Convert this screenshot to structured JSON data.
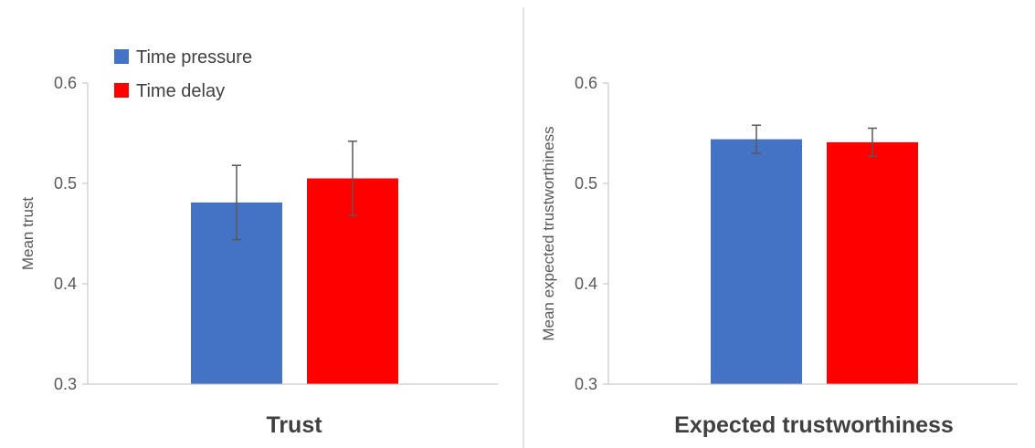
{
  "colors": {
    "series_1": "#4472C4",
    "series_2": "#FF0000",
    "axis": "#BFBFBF",
    "divider": "#D9D9D9",
    "error_bar": "#595959"
  },
  "legend": {
    "placement": "top-left",
    "items": [
      "Time pressure",
      "Time delay"
    ]
  },
  "chart_data": [
    {
      "type": "bar",
      "title": "Trust",
      "ylabel": "Mean trust",
      "xlabel": "",
      "ylim": [
        0.3,
        0.6
      ],
      "yticks": [
        "0.3",
        "0.4",
        "0.5",
        "0.6"
      ],
      "grid": false,
      "series": [
        {
          "name": "Time pressure",
          "value": 0.481,
          "error": 0.037
        },
        {
          "name": "Time delay",
          "value": 0.505,
          "error": 0.037
        }
      ]
    },
    {
      "type": "bar",
      "title": "Expected trustworthiness",
      "ylabel": "Mean expected trustworthiness",
      "xlabel": "",
      "ylim": [
        0.3,
        0.6
      ],
      "yticks": [
        "0.3",
        "0.4",
        "0.5",
        "0.6"
      ],
      "grid": false,
      "series": [
        {
          "name": "Time pressure",
          "value": 0.544,
          "error": 0.014
        },
        {
          "name": "Time delay",
          "value": 0.541,
          "error": 0.014
        }
      ]
    }
  ]
}
